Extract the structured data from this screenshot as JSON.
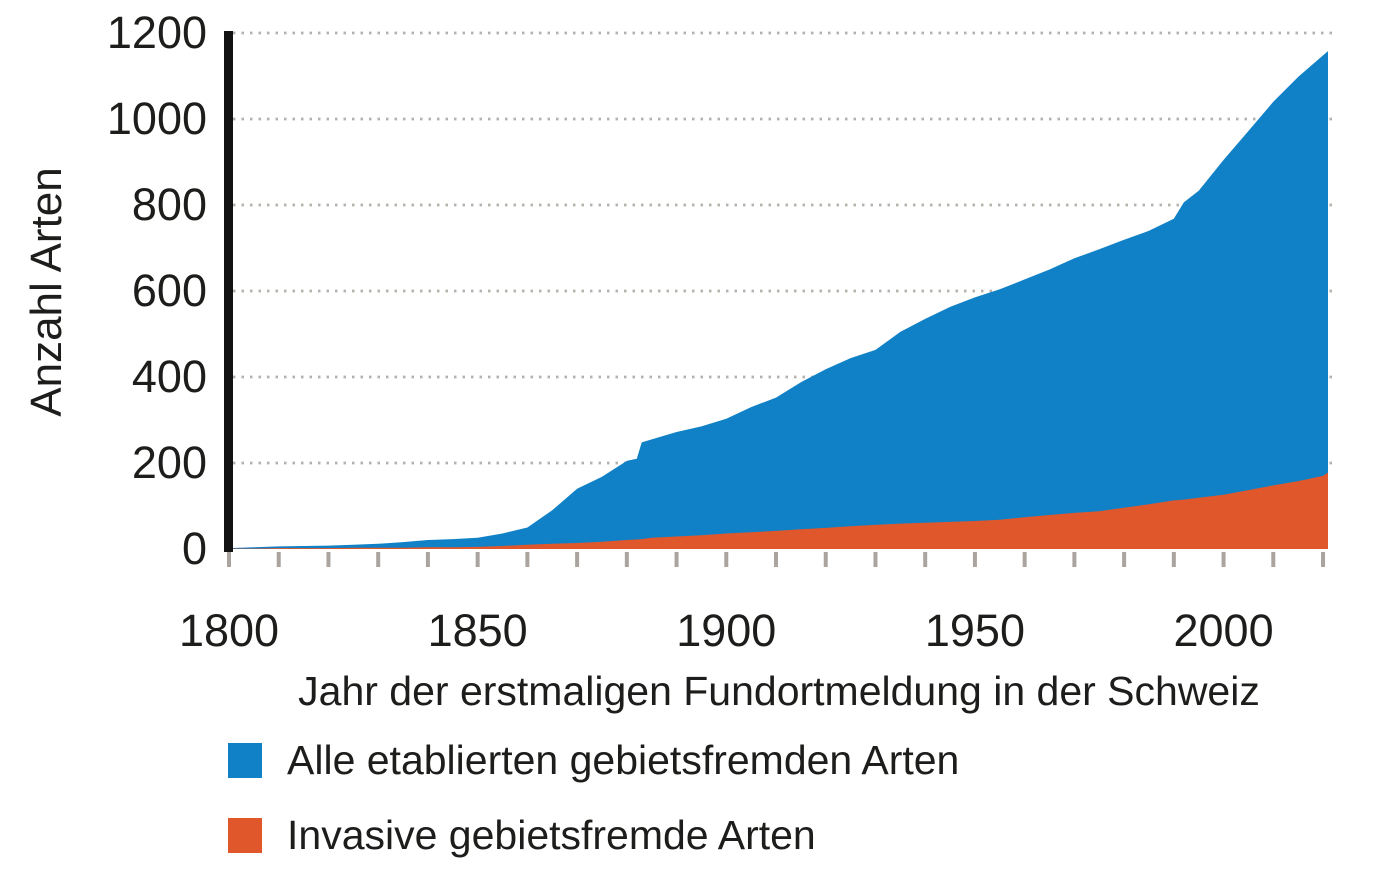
{
  "figure": {
    "background": "#ffffff"
  },
  "colors": {
    "series_blue": "#1081C6",
    "series_orange": "#E1572C",
    "gridline": "#B7B1AB",
    "tick": "#ABA49E",
    "axis": "#121212",
    "text": "#1D1D1B"
  },
  "chart_data": {
    "type": "area",
    "title": "",
    "xlabel": "Jahr der erstmaligen Fundortmeldung in der Schweiz",
    "ylabel": "Anzahl Arten",
    "xlim": [
      1800,
      2021
    ],
    "ylim": [
      0,
      1200
    ],
    "x_major_ticks": [
      1800,
      1850,
      1900,
      1950,
      2000
    ],
    "x_minor_tick_step": 10,
    "x_minor_tick_end": 2020,
    "y_ticks": [
      0,
      200,
      400,
      600,
      800,
      1000,
      1200
    ],
    "grid": "dotted-horizontal",
    "legend_position": "bottom-left",
    "years": [
      1800,
      1805,
      1810,
      1815,
      1820,
      1825,
      1830,
      1835,
      1840,
      1845,
      1850,
      1855,
      1860,
      1865,
      1870,
      1875,
      1880,
      1882,
      1883,
      1885,
      1890,
      1895,
      1900,
      1905,
      1910,
      1915,
      1920,
      1925,
      1930,
      1935,
      1940,
      1945,
      1950,
      1955,
      1960,
      1965,
      1970,
      1975,
      1980,
      1985,
      1990,
      1992,
      1995,
      2000,
      2005,
      2010,
      2015,
      2020,
      2021
    ],
    "series": [
      {
        "name": "Alle etablierten gebietsfremden Arten",
        "color": "#1081C6",
        "values": [
          2,
          4,
          6,
          7,
          8,
          10,
          12,
          16,
          21,
          23,
          26,
          36,
          50,
          90,
          140,
          168,
          205,
          210,
          248,
          255,
          272,
          285,
          303,
          330,
          352,
          388,
          418,
          444,
          463,
          505,
          535,
          563,
          585,
          604,
          627,
          650,
          676,
          697,
          719,
          740,
          768,
          806,
          833,
          905,
          972,
          1040,
          1098,
          1148,
          1158
        ]
      },
      {
        "name": "Invasive gebietsfremde Arten",
        "color": "#E1572C",
        "values": [
          1,
          1,
          2,
          2,
          2,
          3,
          3,
          3,
          4,
          4,
          5,
          7,
          10,
          12,
          14,
          17,
          21,
          22,
          23,
          26,
          29,
          32,
          36,
          39,
          42,
          46,
          49,
          53,
          56,
          59,
          61,
          63,
          65,
          68,
          74,
          79,
          84,
          88,
          96,
          104,
          113,
          115,
          119,
          126,
          137,
          148,
          158,
          170,
          178
        ]
      }
    ]
  }
}
